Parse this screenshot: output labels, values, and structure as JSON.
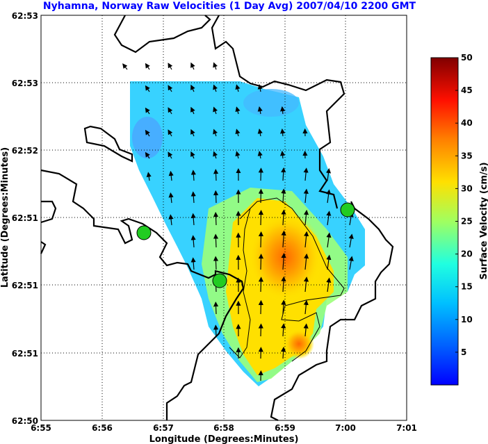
{
  "chart_data": {
    "type": "heatmap",
    "title": "Nyhamna, Norway Raw Velocities (1 Day Avg) 2007/04/10 2200 GMT",
    "xlabel": "Longitude (Degrees:Minutes)",
    "ylabel": "Latitude (Degrees:Minutes)",
    "x_ticks": [
      "6:55",
      "6:56",
      "6:57",
      "6:58",
      "6:59",
      "7:00",
      "7:01"
    ],
    "y_ticks": [
      "62:53",
      "62:53",
      "62:52",
      "62:51",
      "62:51",
      "62:51",
      "62:50"
    ],
    "colorbar": {
      "label": "Surface Velocity (cm/s)",
      "min": 0,
      "max": 50,
      "ticks": [
        5,
        10,
        15,
        20,
        25,
        30,
        35,
        40,
        45,
        50
      ],
      "colormap": "jet"
    },
    "grid": true,
    "site_markers": [
      {
        "lon": 6.947,
        "lat": 0.7,
        "color": "#22cc22"
      },
      {
        "lon": 6.965,
        "lat": 0.5,
        "color": "#22cc22"
      },
      {
        "lon": 7.0,
        "lat": 0.79,
        "color": "#22cc22"
      }
    ],
    "max_speed_region": {
      "lon": 6.985,
      "lat": 0.64,
      "speed_cms": 32
    },
    "contour_levels_cms": [
      25
    ]
  }
}
